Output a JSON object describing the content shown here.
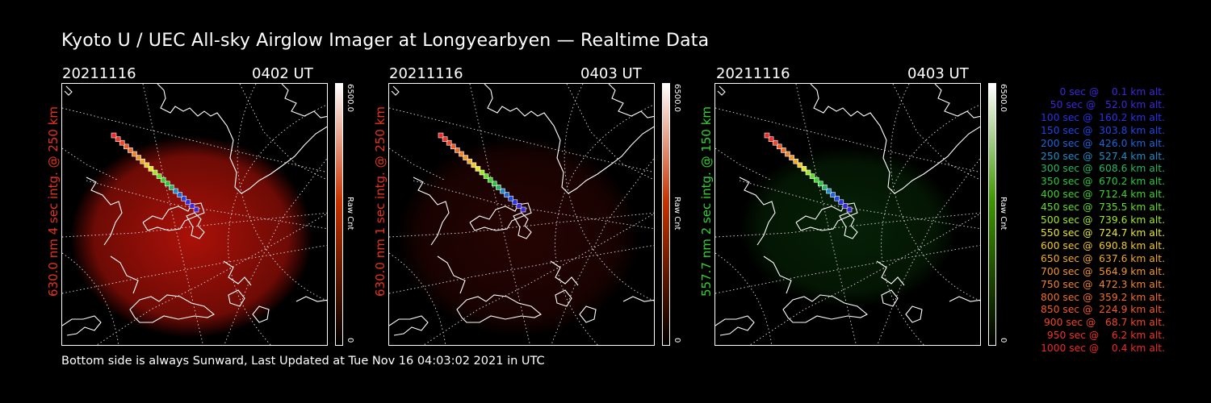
{
  "title": "Kyoto U / UEC All-sky Airglow Imager at Longyearbyen — Realtime Data",
  "footer": "Bottom side is always Sunward, Last Updated at Tue Nov 16 04:03:02 2021 in UTC",
  "panels": [
    {
      "date": "20211116",
      "time": "0402 UT",
      "side_label": "630.0 nm 4 sec intg. @ 250 km",
      "label_color": "#e8321e",
      "glow": "red",
      "intensity": 1.0,
      "colorbar": {
        "max": "6500.0",
        "unit": "Raw Cnt",
        "min": "0",
        "top_color": "#ffffff",
        "bottom_color": "#000000",
        "mid_color": "#c83200"
      }
    },
    {
      "date": "20211116",
      "time": "0403 UT",
      "side_label": "630.0 nm 1 sec intg. @ 250 km",
      "label_color": "#e8321e",
      "glow": "red",
      "intensity": 0.22,
      "colorbar": {
        "max": "6500.0",
        "unit": "Raw Cnt",
        "min": "0",
        "top_color": "#ffffff",
        "bottom_color": "#000000",
        "mid_color": "#c83200"
      }
    },
    {
      "date": "20211116",
      "time": "0403 UT",
      "side_label": "557.7 nm 2 sec intg. @ 150 km",
      "label_color": "#32d232",
      "glow": "green",
      "intensity": 0.35,
      "colorbar": {
        "max": "6500.0",
        "unit": "Raw Cnt",
        "min": "0",
        "top_color": "#ffffff",
        "bottom_color": "#000000",
        "mid_color": "#3c9600"
      }
    }
  ],
  "legend": [
    {
      "text": "0 sec @    0.1 km alt.",
      "color": "#3c28dc"
    },
    {
      "text": "50 sec @   52.0 km alt.",
      "color": "#3c28dc"
    },
    {
      "text": "100 sec @  160.2 km alt.",
      "color": "#2832e6"
    },
    {
      "text": "150 sec @  303.8 km alt.",
      "color": "#1e46e6"
    },
    {
      "text": "200 sec @  426.0 km alt.",
      "color": "#1e64dc"
    },
    {
      "text": "250 sec @  527.4 km alt.",
      "color": "#1e8cc8"
    },
    {
      "text": "300 sec @  608.6 km alt.",
      "color": "#28b464"
    },
    {
      "text": "350 sec @  670.2 km alt.",
      "color": "#28c83c"
    },
    {
      "text": "400 sec @  712.4 km alt.",
      "color": "#3cd228"
    },
    {
      "text": "450 sec @  735.5 km alt.",
      "color": "#64dc28"
    },
    {
      "text": "500 sec @  739.6 km alt.",
      "color": "#a0e628"
    },
    {
      "text": "550 sec @  724.7 km alt.",
      "color": "#e6e628"
    },
    {
      "text": "600 sec @  690.8 km alt.",
      "color": "#f0c828"
    },
    {
      "text": "650 sec @  637.6 km alt.",
      "color": "#f0aa28"
    },
    {
      "text": "700 sec @  564.9 km alt.",
      "color": "#f09628"
    },
    {
      "text": "750 sec @  472.3 km alt.",
      "color": "#f08228"
    },
    {
      "text": "800 sec @  359.2 km alt.",
      "color": "#f06e28"
    },
    {
      "text": "850 sec @  224.9 km alt.",
      "color": "#f05a28"
    },
    {
      "text": "900 sec @   68.7 km alt.",
      "color": "#f04628"
    },
    {
      "text": "950 sec @    6.2 km alt.",
      "color": "#f03228"
    },
    {
      "text": "1000 sec @    0.4 km alt.",
      "color": "#f02828"
    }
  ]
}
